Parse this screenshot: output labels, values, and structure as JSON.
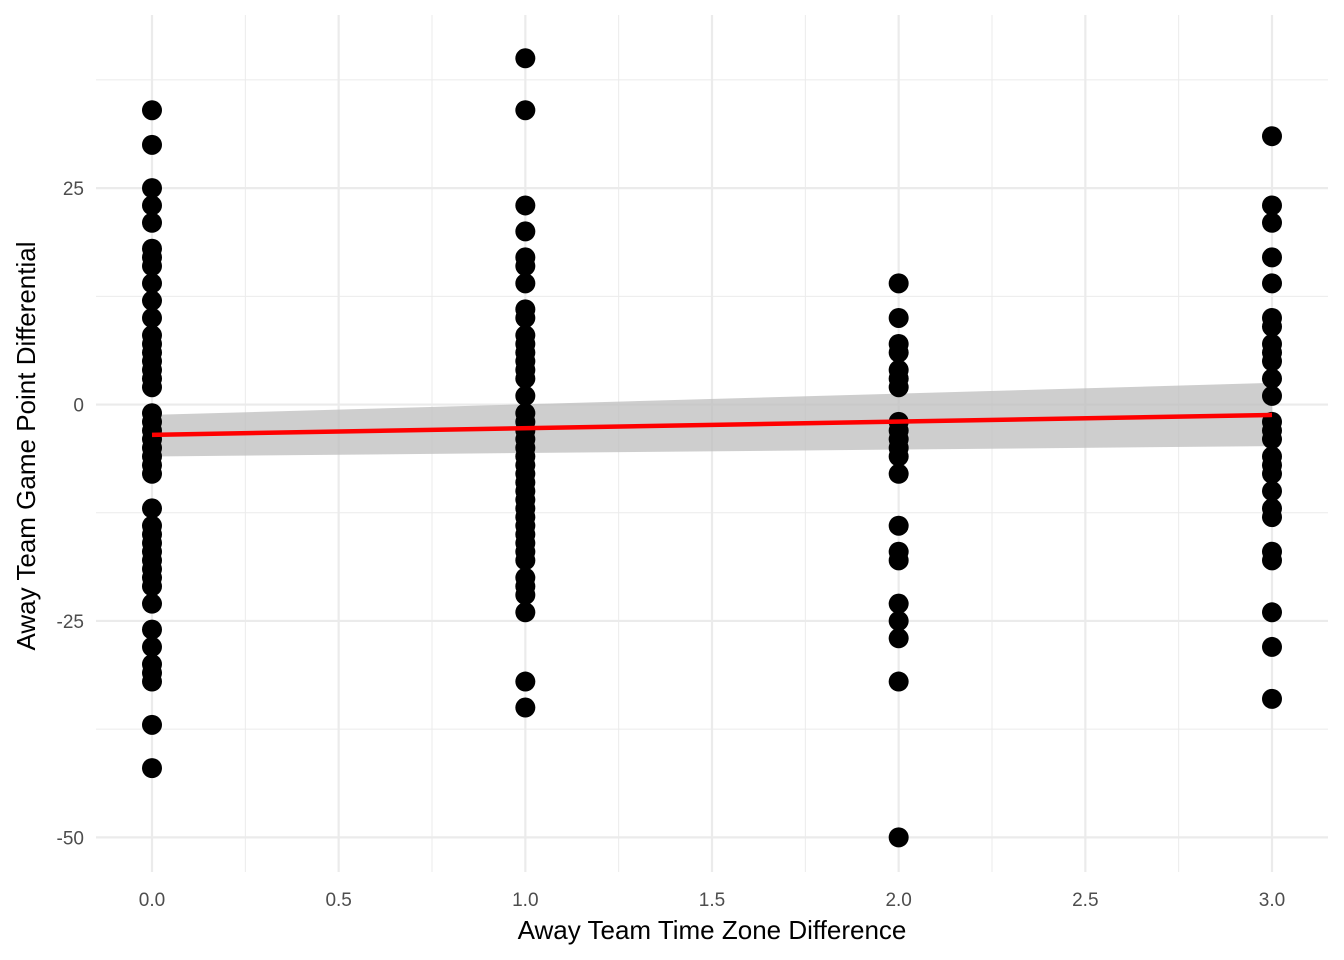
{
  "chart_data": {
    "type": "scatter",
    "title": "",
    "xlabel": "Away Team Time Zone Difference",
    "ylabel": "Away Team Game Point Differential",
    "xlim": [
      -0.15,
      3.15
    ],
    "ylim": [
      -54,
      45
    ],
    "x_ticks": [
      0,
      0.5,
      1,
      1.5,
      2,
      2.5,
      3
    ],
    "x_tick_labels": [
      "0.0",
      "0.5",
      "1.0",
      "1.5",
      "2.0",
      "2.5",
      "3.0"
    ],
    "y_ticks": [
      -50,
      -25,
      0,
      25
    ],
    "y_tick_labels": [
      "-50",
      "-25",
      "0",
      "25"
    ],
    "grid": true,
    "colors": {
      "points": "#000000",
      "fit_line": "#ff0000",
      "confidence_band": "#bdbdbd",
      "grid": "#ebebeb"
    },
    "series": [
      {
        "kind": "points",
        "points": [
          [
            0,
            34
          ],
          [
            0,
            30
          ],
          [
            0,
            25
          ],
          [
            0,
            23
          ],
          [
            0,
            21
          ],
          [
            0,
            18
          ],
          [
            0,
            17
          ],
          [
            0,
            16
          ],
          [
            0,
            14
          ],
          [
            0,
            12
          ],
          [
            0,
            10
          ],
          [
            0,
            8
          ],
          [
            0,
            7
          ],
          [
            0,
            6
          ],
          [
            0,
            5
          ],
          [
            0,
            4
          ],
          [
            0,
            3
          ],
          [
            0,
            2
          ],
          [
            0,
            -1
          ],
          [
            0,
            -2
          ],
          [
            0,
            -3
          ],
          [
            0,
            -4
          ],
          [
            0,
            -5
          ],
          [
            0,
            -6
          ],
          [
            0,
            -7
          ],
          [
            0,
            -8
          ],
          [
            0,
            -12
          ],
          [
            0,
            -14
          ],
          [
            0,
            -15
          ],
          [
            0,
            -16
          ],
          [
            0,
            -17
          ],
          [
            0,
            -18
          ],
          [
            0,
            -19
          ],
          [
            0,
            -20
          ],
          [
            0,
            -21
          ],
          [
            0,
            -23
          ],
          [
            0,
            -26
          ],
          [
            0,
            -28
          ],
          [
            0,
            -30
          ],
          [
            0,
            -31
          ],
          [
            0,
            -32
          ],
          [
            0,
            -37
          ],
          [
            0,
            -42
          ],
          [
            1,
            40
          ],
          [
            1,
            34
          ],
          [
            1,
            23
          ],
          [
            1,
            20
          ],
          [
            1,
            17
          ],
          [
            1,
            16
          ],
          [
            1,
            14
          ],
          [
            1,
            11
          ],
          [
            1,
            10
          ],
          [
            1,
            8
          ],
          [
            1,
            7
          ],
          [
            1,
            6
          ],
          [
            1,
            5
          ],
          [
            1,
            4
          ],
          [
            1,
            3
          ],
          [
            1,
            1
          ],
          [
            1,
            -1
          ],
          [
            1,
            -2
          ],
          [
            1,
            -3
          ],
          [
            1,
            -4
          ],
          [
            1,
            -5
          ],
          [
            1,
            -6
          ],
          [
            1,
            -7
          ],
          [
            1,
            -8
          ],
          [
            1,
            -9
          ],
          [
            1,
            -10
          ],
          [
            1,
            -11
          ],
          [
            1,
            -12
          ],
          [
            1,
            -13
          ],
          [
            1,
            -14
          ],
          [
            1,
            -15
          ],
          [
            1,
            -16
          ],
          [
            1,
            -17
          ],
          [
            1,
            -18
          ],
          [
            1,
            -20
          ],
          [
            1,
            -21
          ],
          [
            1,
            -22
          ],
          [
            1,
            -24
          ],
          [
            1,
            -32
          ],
          [
            1,
            -35
          ],
          [
            2,
            14
          ],
          [
            2,
            10
          ],
          [
            2,
            7
          ],
          [
            2,
            6
          ],
          [
            2,
            4
          ],
          [
            2,
            3
          ],
          [
            2,
            2
          ],
          [
            2,
            -2
          ],
          [
            2,
            -3
          ],
          [
            2,
            -4
          ],
          [
            2,
            -5
          ],
          [
            2,
            -6
          ],
          [
            2,
            -8
          ],
          [
            2,
            -14
          ],
          [
            2,
            -17
          ],
          [
            2,
            -18
          ],
          [
            2,
            -23
          ],
          [
            2,
            -25
          ],
          [
            2,
            -27
          ],
          [
            2,
            -32
          ],
          [
            2,
            -50
          ],
          [
            3,
            31
          ],
          [
            3,
            23
          ],
          [
            3,
            21
          ],
          [
            3,
            17
          ],
          [
            3,
            14
          ],
          [
            3,
            10
          ],
          [
            3,
            9
          ],
          [
            3,
            7
          ],
          [
            3,
            6
          ],
          [
            3,
            5
          ],
          [
            3,
            3
          ],
          [
            3,
            1
          ],
          [
            3,
            -2
          ],
          [
            3,
            -3
          ],
          [
            3,
            -4
          ],
          [
            3,
            -6
          ],
          [
            3,
            -7
          ],
          [
            3,
            -8
          ],
          [
            3,
            -10
          ],
          [
            3,
            -12
          ],
          [
            3,
            -13
          ],
          [
            3,
            -17
          ],
          [
            3,
            -18
          ],
          [
            3,
            -24
          ],
          [
            3,
            -28
          ],
          [
            3,
            -34
          ]
        ]
      },
      {
        "kind": "linear_fit",
        "x": [
          0,
          3
        ],
        "y": [
          -3.5,
          -1.2
        ],
        "ci_upper": [
          -1.2,
          2.5
        ],
        "ci_lower": [
          -6.0,
          -4.8
        ]
      }
    ]
  }
}
